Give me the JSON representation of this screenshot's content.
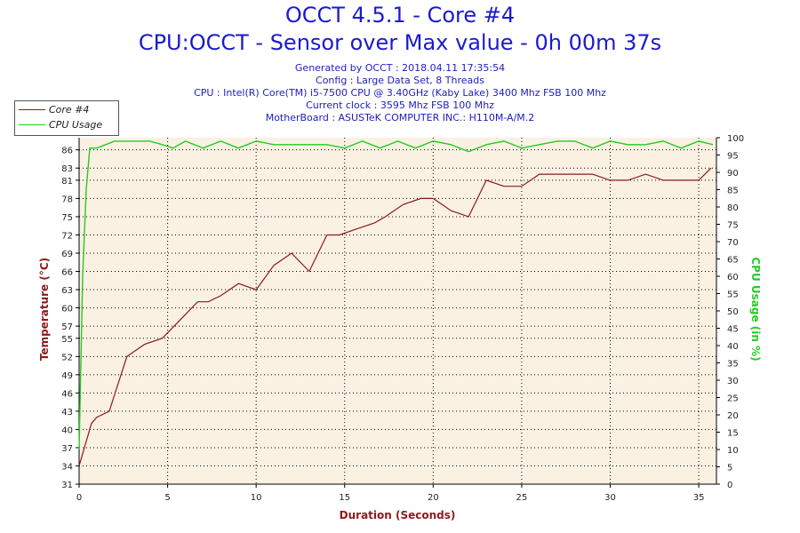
{
  "header": {
    "title": "OCCT 4.5.1 - Core #4",
    "subtitle": "CPU:OCCT - Sensor over Max value - 0h 00m 37s",
    "info_lines": [
      "Generated by OCCT : 2018.04.11 17:35:54",
      "Config : Large Data Set, 8 Threads",
      "CPU : Intel(R) Core(TM) i5-7500 CPU @ 3.40GHz (Kaby Lake) 3400 Mhz FSB 100 Mhz",
      "Current clock : 3595 Mhz FSB 100 Mhz",
      "MotherBoard : ASUSTeK COMPUTER INC.: H110M-A/M.2"
    ]
  },
  "legend": {
    "core_label": "Core #4",
    "usage_label": "CPU Usage"
  },
  "colors": {
    "temperature": "#8b1a1a",
    "usage": "#22cc22",
    "plot_bg": "#fbf1e3",
    "title": "#1a1ad0",
    "xlabel": "#8b1a1a"
  },
  "chart_data": {
    "type": "line",
    "xlabel": "Duration (Seconds)",
    "ylabel": "Temperature (°C)",
    "y2label": "CPU Usage (in %)",
    "xlim": [
      0,
      36
    ],
    "ylim": [
      31,
      88
    ],
    "y2lim": [
      0,
      100
    ],
    "x_ticks": [
      0,
      5,
      10,
      15,
      20,
      25,
      30,
      35
    ],
    "y_ticks": [
      31,
      34,
      37,
      40,
      43,
      46,
      49,
      52,
      55,
      57,
      60,
      63,
      66,
      69,
      72,
      75,
      78,
      81,
      83,
      86
    ],
    "y2_ticks": [
      0,
      5,
      10,
      15,
      20,
      25,
      30,
      35,
      40,
      45,
      50,
      55,
      60,
      65,
      70,
      75,
      80,
      85,
      90,
      95,
      100
    ],
    "grid": true,
    "series": [
      {
        "name": "Core #4",
        "axis": "left",
        "x": [
          0,
          0.7,
          1.0,
          1.7,
          2.7,
          3.7,
          4.7,
          5.7,
          6.7,
          7.3,
          8.0,
          9.0,
          10.0,
          11.0,
          12.0,
          13.0,
          14.0,
          14.7,
          15.7,
          16.7,
          17.3,
          18.3,
          19.3,
          20.0,
          21.0,
          22.0,
          23.0,
          24.0,
          25.0,
          26.0,
          27.0,
          28.0,
          29.0,
          30.0,
          31.0,
          32.0,
          33.0,
          34.0,
          35.0,
          35.7
        ],
        "values": [
          34,
          41,
          42,
          43,
          52,
          54,
          55,
          58,
          61,
          61,
          62,
          64,
          63,
          67,
          69,
          66,
          72,
          72,
          73,
          74,
          75,
          77,
          78,
          78,
          76,
          75,
          81,
          80,
          80,
          82,
          82,
          82,
          82,
          81,
          81,
          82,
          81,
          81,
          81,
          83
        ]
      },
      {
        "name": "CPU Usage",
        "axis": "right",
        "x": [
          0,
          0.2,
          0.4,
          0.6,
          1.0,
          1.5,
          2.0,
          3.0,
          4.0,
          4.7,
          5.3,
          6.0,
          7.0,
          8.0,
          9.0,
          10.0,
          11.0,
          12.0,
          13.0,
          14.0,
          15.0,
          16.0,
          17.0,
          18.0,
          19.0,
          20.0,
          21.0,
          22.0,
          23.0,
          24.0,
          25.0,
          26.0,
          27.0,
          28.0,
          29.0,
          30.0,
          31.0,
          32.0,
          33.0,
          34.0,
          35.0,
          35.8
        ],
        "values": [
          10,
          60,
          85,
          97,
          97,
          98,
          99,
          99,
          99,
          98,
          97,
          99,
          97,
          99,
          97,
          99,
          98,
          98,
          98,
          98,
          97,
          99,
          97,
          99,
          97,
          99,
          98,
          96,
          98,
          99,
          97,
          98,
          99,
          99,
          97,
          99,
          98,
          98,
          99,
          97,
          99,
          98
        ]
      }
    ]
  }
}
